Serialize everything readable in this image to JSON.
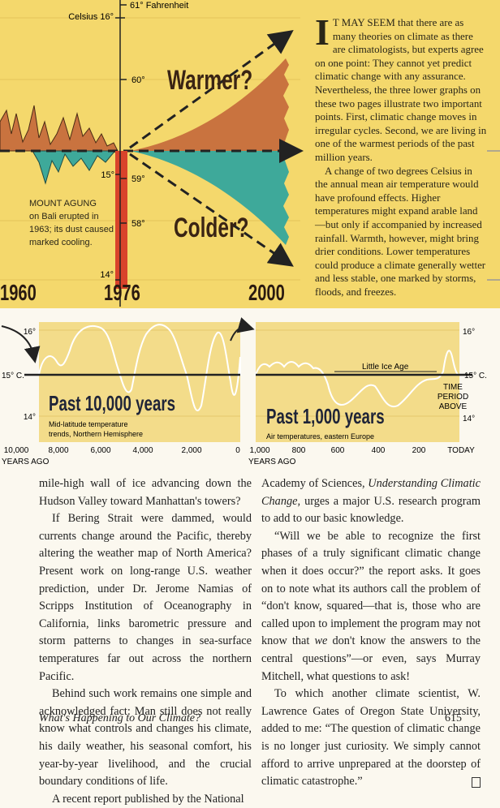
{
  "top_chart": {
    "celsius_labels": [
      "Celsius 16°",
      "15°",
      "14°"
    ],
    "fahrenheit_labels": [
      "61° Fahrenheit",
      "60°",
      "59°",
      "58°"
    ],
    "warmer": "Warmer?",
    "colder": "Colder?",
    "note": [
      "MOUNT AGUNG",
      "on Bali erupted in",
      "1963; its dust caused",
      "marked cooling."
    ],
    "years": [
      "1960",
      "1976",
      "2000"
    ]
  },
  "sidebar": {
    "drop_cap": "I",
    "paragraphs": [
      "T MAY SEEM that there are as many theories on climate as there are climatologists, but experts agree on one point: They cannot yet predict climatic change with any assurance. Nevertheless, the three lower graphs on these two pages illustrate two important points. First, climatic change moves in irregular cycles. Second, we are living in one of the warmest periods of the past million years.",
      "A change of two degrees Celsius in the annual mean air temperature would have profound effects. Higher temperatures might expand arable land—but only if accompanied by increased rainfall. Warmth, however, might bring drier conditions. Lower temperatures could produce a climate generally wetter and less stable, one marked by storms, floods, and freezes."
    ]
  },
  "lower_charts": [
    {
      "title": "Past 10,000 years",
      "caption": [
        "Mid-latitude temperature",
        "trends, Northern Hemisphere"
      ],
      "y_labels": [
        "16°",
        "15° C.",
        "14°"
      ],
      "x_labels": [
        "10,000",
        "8,000",
        "6,000",
        "4,000",
        "2,000",
        "0"
      ],
      "x_unit": "YEARS AGO"
    },
    {
      "title": "Past 1,000 years",
      "caption": [
        "Air temperatures, eastern Europe"
      ],
      "y_labels": [
        "16°",
        "15° C.",
        "14°"
      ],
      "x_labels": [
        "1,000",
        "800",
        "600",
        "400",
        "200",
        "TODAY"
      ],
      "x_unit": "YEARS AGO",
      "annotation": "Little Ice Age",
      "time_period": [
        "TIME",
        "PERIOD",
        "ABOVE"
      ]
    }
  ],
  "body": {
    "left_column": [
      "mile-high wall of ice advancing down the Hudson Valley toward Manhattan's towers?",
      "If Bering Strait were dammed, would currents change around the Pacific, thereby altering the weather map of North America? Present work on long-range U.S. weather prediction, under Dr. Jerome Namias of Scripps Institution of Oceanography in California, links barometric pressure and storm patterns to changes in sea-surface temperatures far out across the northern Pacific.",
      "Behind such work remains one simple and acknowledged fact: Man still does not really know what controls and changes his climate, his daily weather, his seasonal comfort, his year-by-year livelihood, and the crucial boundary conditions of life.",
      "A recent report published by the National"
    ],
    "right_column": [
      [
        "Academy of Sciences, ",
        "Understanding Climatic Change,",
        " urges a major U.S. research program to add to our basic knowledge."
      ],
      [
        "“Will we be able to recognize the first phases of a truly significant climatic change when it does occur?” the report asks. It goes on to note what its authors call the problem of “don't know, squared—that is, those who are called upon to implement the program may not know that ",
        "we",
        " don't know the answers to the central questions”—or even, says Murray Mitchell, what questions to ask!"
      ],
      [
        "To which another climate scientist, W. Lawrence Gates of Oregon State University, added to me: “The question of climatic change is no longer just curiosity. We simply cannot afford to arrive unprepared at the doorstep of climatic catastrophe.”"
      ]
    ]
  },
  "footer": {
    "running_title": "What's Happening to Our Climate?",
    "page_number": "615"
  }
}
